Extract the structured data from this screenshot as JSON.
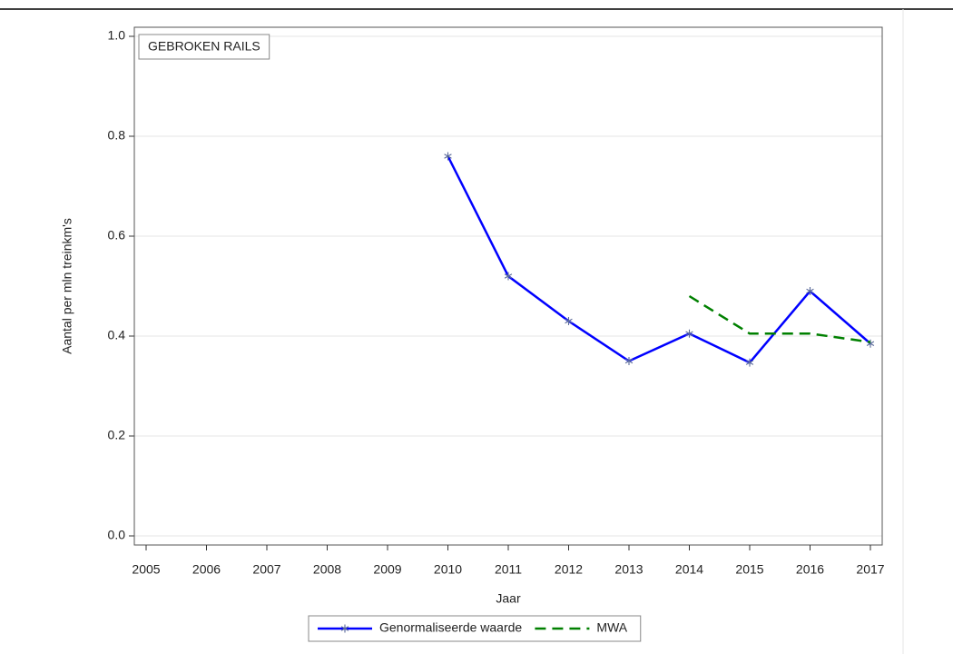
{
  "chart_data": {
    "type": "line",
    "annotation": "GEBROKEN RAILS",
    "x_label": "Jaar",
    "y_label": "Aantal per mln treinkm's",
    "x": [
      2005,
      2006,
      2007,
      2008,
      2009,
      2010,
      2011,
      2012,
      2013,
      2014,
      2015,
      2016,
      2017
    ],
    "series": [
      {
        "name": "Genormaliseerde waarde",
        "color": "#0000ff",
        "marker": "asterisk",
        "values": [
          null,
          null,
          null,
          null,
          null,
          0.76,
          0.52,
          0.43,
          0.35,
          0.405,
          0.347,
          0.49,
          0.385
        ]
      },
      {
        "name": "MWA",
        "color": "#008000",
        "dash": "dashed",
        "values": [
          null,
          null,
          null,
          null,
          null,
          null,
          null,
          null,
          null,
          0.48,
          0.405,
          0.405,
          0.388
        ]
      }
    ],
    "xlim": [
      2005,
      2017
    ],
    "xticks": [
      2005,
      2006,
      2007,
      2008,
      2009,
      2010,
      2011,
      2012,
      2013,
      2014,
      2015,
      2016,
      2017
    ],
    "ylim": [
      0,
      1
    ],
    "yticks": [
      {
        "value": 0,
        "label": "0.0"
      },
      0.2,
      0.4,
      0.6,
      0.8,
      {
        "value": 1,
        "label": "1.0"
      }
    ],
    "grid": true,
    "legend": "bottom"
  }
}
